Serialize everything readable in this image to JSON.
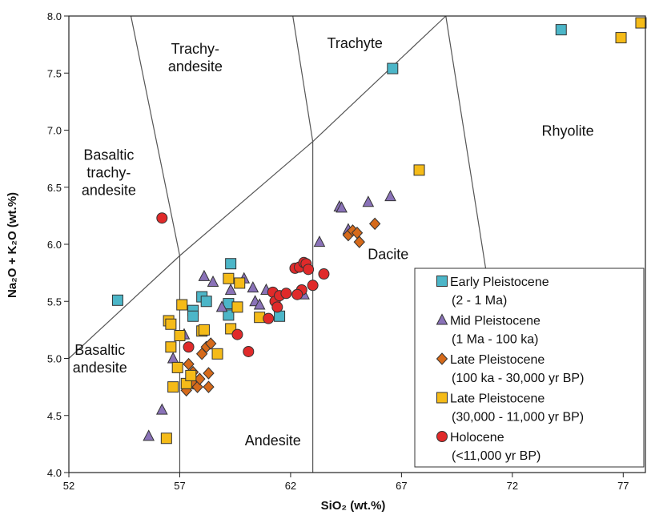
{
  "chart_data": {
    "type": "scatter",
    "title": "",
    "xlabel": "SiO₂ (wt.%)",
    "ylabel": "Na₂O + K₂O (wt.%)",
    "xlim": [
      52,
      78
    ],
    "ylim": [
      4.0,
      8.0
    ],
    "x_ticks": [
      52,
      57,
      62,
      67,
      72,
      77
    ],
    "y_ticks": [
      4.0,
      4.5,
      5.0,
      5.5,
      6.0,
      6.5,
      7.0,
      7.5,
      8.0
    ],
    "grid": false,
    "legend_position": "bottom-right",
    "field_boundaries": [
      {
        "points": [
          [
            52,
            5.0
          ],
          [
            57,
            5.9
          ],
          [
            63,
            6.9
          ],
          [
            69,
            8.0
          ]
        ]
      },
      {
        "points": [
          [
            57,
            4.0
          ],
          [
            57,
            5.9
          ]
        ]
      },
      {
        "points": [
          [
            63,
            4.0
          ],
          [
            63,
            6.9
          ]
        ]
      },
      {
        "points": [
          [
            57,
            5.9
          ],
          [
            54.8,
            8.0
          ]
        ]
      },
      {
        "points": [
          [
            63,
            6.9
          ],
          [
            62.1,
            8.0
          ]
        ]
      },
      {
        "points": [
          [
            69,
            8.0
          ],
          [
            71.6,
            4.8
          ]
        ]
      }
    ],
    "field_labels": [
      {
        "lines": [
          "Trachy-",
          "andesite"
        ],
        "x": 57.7,
        "y": 7.67
      },
      {
        "lines": [
          "Trachyte"
        ],
        "x": 64.9,
        "y": 7.72
      },
      {
        "lines": [
          "Rhyolite"
        ],
        "x": 74.5,
        "y": 6.95
      },
      {
        "lines": [
          "Basaltic",
          "trachy-",
          "andesite"
        ],
        "x": 53.8,
        "y": 6.74
      },
      {
        "lines": [
          "Dacite"
        ],
        "x": 66.4,
        "y": 5.87
      },
      {
        "lines": [
          "Basaltic",
          "andesite"
        ],
        "x": 53.4,
        "y": 5.03
      },
      {
        "lines": [
          "Andesite"
        ],
        "x": 61.2,
        "y": 4.24
      }
    ],
    "series": [
      {
        "name": "Early Pleistocene",
        "subname": "(2 - 1 Ma)",
        "marker": "square",
        "color": "#4cb6c8",
        "points": [
          [
            54.2,
            5.51
          ],
          [
            57.6,
            5.42
          ],
          [
            57.6,
            5.37
          ],
          [
            58.0,
            5.54
          ],
          [
            58.2,
            5.5
          ],
          [
            59.2,
            5.48
          ],
          [
            59.2,
            5.38
          ],
          [
            59.3,
            5.83
          ],
          [
            61.5,
            5.37
          ],
          [
            66.6,
            7.54
          ],
          [
            74.2,
            7.88
          ]
        ]
      },
      {
        "name": "Mid Pleistocene",
        "subname": "(1 Ma - 100 ka)",
        "marker": "triangle",
        "color": "#8a72b8",
        "points": [
          [
            55.6,
            4.32
          ],
          [
            56.2,
            4.55
          ],
          [
            56.7,
            5.0
          ],
          [
            57.2,
            5.21
          ],
          [
            58.1,
            5.72
          ],
          [
            58.5,
            5.67
          ],
          [
            58.9,
            5.45
          ],
          [
            59.3,
            5.6
          ],
          [
            59.9,
            5.7
          ],
          [
            60.3,
            5.62
          ],
          [
            60.4,
            5.5
          ],
          [
            60.6,
            5.47
          ],
          [
            60.9,
            5.6
          ],
          [
            62.6,
            5.56
          ],
          [
            63.3,
            6.02
          ],
          [
            64.2,
            6.33
          ],
          [
            64.3,
            6.32
          ],
          [
            64.6,
            6.13
          ],
          [
            65.5,
            6.37
          ],
          [
            66.5,
            6.42
          ]
        ]
      },
      {
        "name": "Late Pleistocene",
        "subname": "(100 ka - 30,000 yr BP)",
        "marker": "diamond",
        "color": "#d66a1a",
        "points": [
          [
            57.3,
            4.72
          ],
          [
            57.4,
            4.95
          ],
          [
            57.6,
            4.88
          ],
          [
            57.6,
            4.78
          ],
          [
            57.8,
            4.75
          ],
          [
            57.9,
            4.82
          ],
          [
            58.0,
            5.04
          ],
          [
            58.2,
            5.1
          ],
          [
            58.3,
            4.87
          ],
          [
            58.3,
            4.75
          ],
          [
            58.4,
            5.13
          ],
          [
            64.6,
            6.08
          ],
          [
            64.8,
            6.12
          ],
          [
            65.0,
            6.1
          ],
          [
            65.1,
            6.02
          ],
          [
            65.8,
            6.18
          ]
        ]
      },
      {
        "name": "Late Pleistocene",
        "subname": "(30,000 - 11,000 yr BP)",
        "marker": "square",
        "color": "#f5bb18",
        "points": [
          [
            56.4,
            4.3
          ],
          [
            56.5,
            5.33
          ],
          [
            56.6,
            5.1
          ],
          [
            56.6,
            5.3
          ],
          [
            56.7,
            4.75
          ],
          [
            56.9,
            4.92
          ],
          [
            57.0,
            5.2
          ],
          [
            57.1,
            5.47
          ],
          [
            57.3,
            4.78
          ],
          [
            57.5,
            4.85
          ],
          [
            58.0,
            5.24
          ],
          [
            58.1,
            5.25
          ],
          [
            58.7,
            5.04
          ],
          [
            59.2,
            5.7
          ],
          [
            59.3,
            5.26
          ],
          [
            59.6,
            5.45
          ],
          [
            59.7,
            5.66
          ],
          [
            60.6,
            5.36
          ],
          [
            67.8,
            6.65
          ],
          [
            76.9,
            7.81
          ],
          [
            77.8,
            7.94
          ]
        ]
      },
      {
        "name": "Holocene",
        "subname": "(<11,000 yr BP)",
        "marker": "circle",
        "color": "#e02a2a",
        "points": [
          [
            56.2,
            6.23
          ],
          [
            57.4,
            5.1
          ],
          [
            59.6,
            5.21
          ],
          [
            60.1,
            5.06
          ],
          [
            61.0,
            5.35
          ],
          [
            61.2,
            5.58
          ],
          [
            61.3,
            5.5
          ],
          [
            61.4,
            5.45
          ],
          [
            61.5,
            5.55
          ],
          [
            61.8,
            5.57
          ],
          [
            62.2,
            5.79
          ],
          [
            62.4,
            5.8
          ],
          [
            62.5,
            5.6
          ],
          [
            62.6,
            5.84
          ],
          [
            62.7,
            5.83
          ],
          [
            62.8,
            5.78
          ],
          [
            63.0,
            5.64
          ],
          [
            62.3,
            5.56
          ],
          [
            63.5,
            5.74
          ]
        ]
      }
    ]
  }
}
